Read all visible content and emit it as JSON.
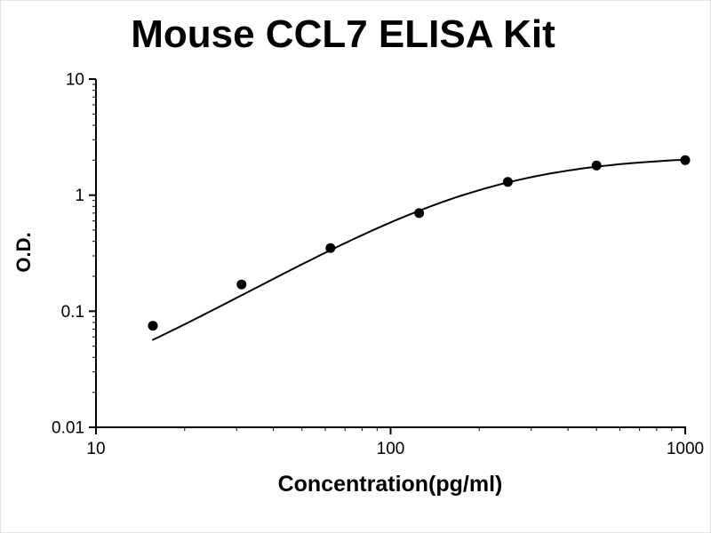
{
  "figure": {
    "background_color": "#ffffff",
    "axis_color": "#000000",
    "curve_color": "#000000",
    "marker_color": "#000000"
  },
  "chart_data": {
    "type": "scatter",
    "title": "Mouse CCL7 ELISA Kit",
    "xlabel": "Concentration(pg/ml)",
    "ylabel": "O.D.",
    "x_scale": "log",
    "y_scale": "log",
    "xlim": [
      10,
      1000
    ],
    "ylim": [
      0.01,
      10
    ],
    "x_ticks": [
      10,
      100,
      1000
    ],
    "y_ticks": [
      10,
      1,
      0.1,
      0.01
    ],
    "grid": false,
    "legend": null,
    "series": [
      {
        "name": "standard-curve-points",
        "marker": "filled-circle",
        "points": [
          {
            "x": 15.6,
            "y": 0.075
          },
          {
            "x": 31.2,
            "y": 0.17
          },
          {
            "x": 62.5,
            "y": 0.35
          },
          {
            "x": 125,
            "y": 0.7
          },
          {
            "x": 250,
            "y": 1.3
          },
          {
            "x": 500,
            "y": 1.8
          },
          {
            "x": 1000,
            "y": 2.0
          }
        ]
      }
    ],
    "fit_curve": {
      "model": "4PL",
      "A": 0.01,
      "B": 1.5,
      "C": 200,
      "D": 2.2,
      "x_range": [
        15.6,
        1000
      ]
    }
  }
}
